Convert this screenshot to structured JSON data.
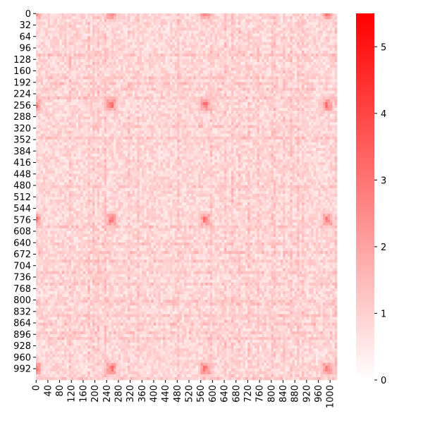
{
  "chart_data": {
    "type": "heatmap",
    "title": "",
    "xlabel": "",
    "ylabel": "",
    "x_range": [
      0,
      1023
    ],
    "y_range": [
      0,
      1023
    ],
    "x_tick_labels": [
      "0",
      "40",
      "80",
      "120",
      "160",
      "200",
      "240",
      "280",
      "320",
      "360",
      "400",
      "440",
      "480",
      "520",
      "560",
      "600",
      "640",
      "680",
      "720",
      "760",
      "800",
      "840",
      "880",
      "920",
      "960",
      "1000"
    ],
    "y_tick_labels": [
      "0",
      "32",
      "64",
      "96",
      "128",
      "160",
      "192",
      "224",
      "256",
      "288",
      "320",
      "352",
      "384",
      "416",
      "448",
      "480",
      "512",
      "544",
      "576",
      "608",
      "640",
      "672",
      "704",
      "736",
      "768",
      "800",
      "832",
      "864",
      "896",
      "928",
      "960",
      "992"
    ],
    "value_range": [
      0,
      5.5
    ],
    "colorbar": {
      "ticks": [
        "0",
        "1",
        "2",
        "3",
        "4",
        "5"
      ],
      "low_color": "#ffffff",
      "high_color": "#ff0000"
    },
    "description_pattern": {
      "dense_blocks_centers": [
        0,
        256,
        576,
        992
      ],
      "dense_block_value": 3.2,
      "background_value": 1.0
    }
  }
}
